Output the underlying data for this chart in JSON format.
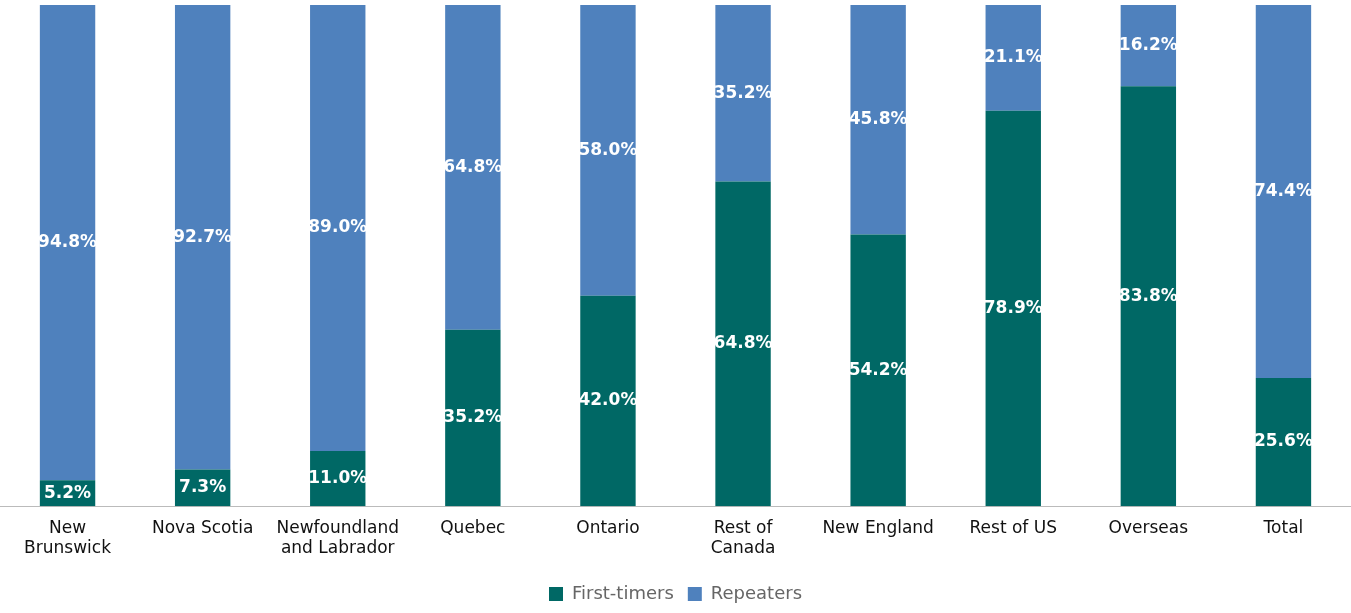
{
  "chart_data": {
    "type": "bar",
    "stacked": true,
    "legend": "bottom",
    "grid": false,
    "categories": [
      "New Brunswick",
      "Nova Scotia",
      "Newfoundland and Labrador",
      "Quebec",
      "Ontario",
      "Rest of Canada",
      "New England",
      "Rest of US",
      "Overseas",
      "Total"
    ],
    "series": [
      {
        "name": "First-timers",
        "color": "#006865",
        "values": [
          5.2,
          7.3,
          11.0,
          35.2,
          42.0,
          64.8,
          54.2,
          78.9,
          83.8,
          25.6
        ],
        "value_labels": [
          "5.2%",
          "7.3%",
          "11.0%",
          "35.2%",
          "42.0%",
          "64.8%",
          "54.2%",
          "78.9%",
          "83.8%",
          "25.6%"
        ]
      },
      {
        "name": "Repeaters",
        "color": "#4f81bd",
        "values": [
          94.8,
          92.7,
          89.0,
          64.8,
          58.0,
          35.2,
          45.8,
          21.1,
          16.2,
          74.4
        ],
        "value_labels": [
          "94.8%",
          "92.7%",
          "89.0%",
          "64.8%",
          "58.0%",
          "35.2%",
          "45.8%",
          "21.1%",
          "16.2%",
          "74.4%"
        ]
      }
    ]
  }
}
